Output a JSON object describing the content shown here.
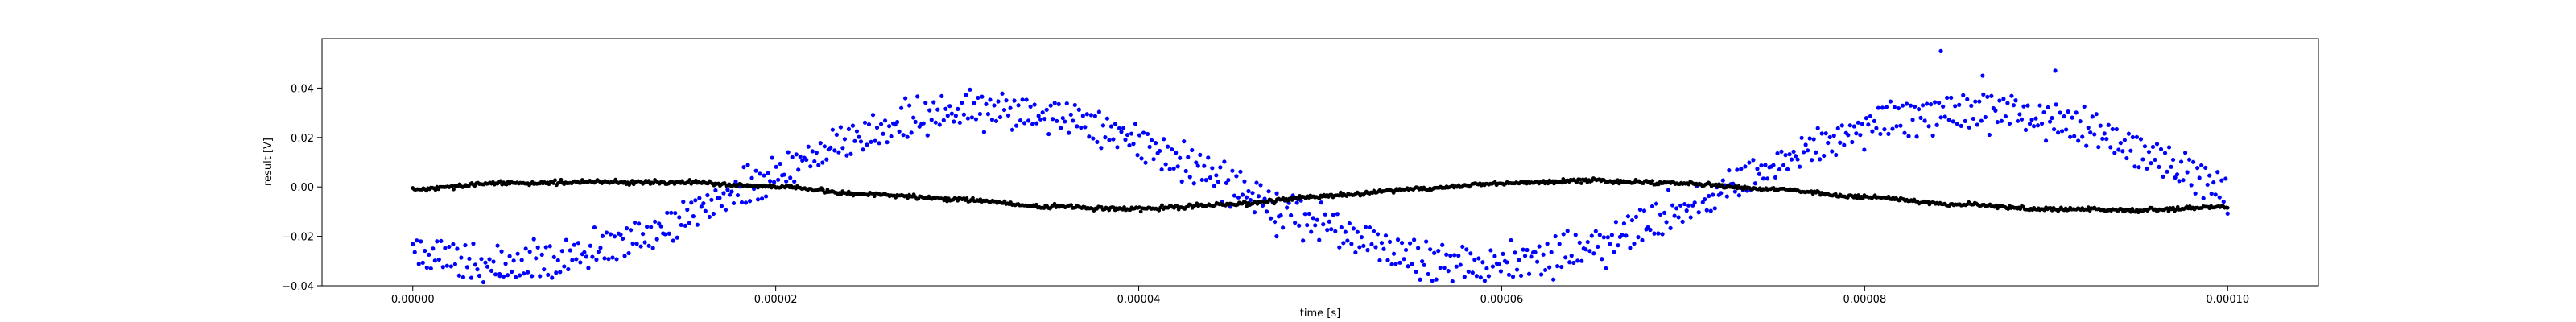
{
  "chart_data": {
    "type": "scatter",
    "title": "",
    "xlabel": "time [s]",
    "ylabel": "result [V]",
    "xlim": [
      -5e-06,
      0.000105
    ],
    "ylim": [
      -0.04,
      0.06
    ],
    "grid": false,
    "x_ticks": [
      {
        "value": 0.0,
        "label": "0.00000"
      },
      {
        "value": 2e-05,
        "label": "0.00002"
      },
      {
        "value": 4e-05,
        "label": "0.00004"
      },
      {
        "value": 6e-05,
        "label": "0.00006"
      },
      {
        "value": 8e-05,
        "label": "0.00008"
      },
      {
        "value": 0.0001,
        "label": "0.00010"
      }
    ],
    "y_ticks": [
      {
        "value": -0.04,
        "label": "−0.04"
      },
      {
        "value": -0.02,
        "label": "−0.02"
      },
      {
        "value": 0.0,
        "label": "0.00"
      },
      {
        "value": 0.02,
        "label": "0.02"
      },
      {
        "value": 0.04,
        "label": "0.04"
      }
    ],
    "series": [
      {
        "color": "#0000ff",
        "marker": "point",
        "generator": {
          "kind": "dual-sine",
          "x_start": 0.0,
          "x_end": 0.0001,
          "count": 900,
          "amplitude": 0.031,
          "period": 5.4e-05,
          "peak_at": 3.2e-05,
          "branch_offsets": [
            0.0035,
            -0.0035
          ],
          "noise": 0.0025,
          "seed": 11
        },
        "outliers": [
          {
            "x": 8.42e-05,
            "y": 0.055
          },
          {
            "x": 8.65e-05,
            "y": 0.045
          },
          {
            "x": 9.05e-05,
            "y": 0.047
          },
          {
            "x": 4.8e-06,
            "y": -0.036
          },
          {
            "x": 4.76e-05,
            "y": -0.02
          }
        ]
      },
      {
        "color": "#000000",
        "marker": "point",
        "points": [
          [
            0.0,
            -0.001
          ],
          [
            5e-06,
            0.0015
          ],
          [
            1e-05,
            0.002
          ],
          [
            1.5e-05,
            0.0018
          ],
          [
            2e-05,
            0.0
          ],
          [
            2.5e-05,
            -0.003
          ],
          [
            3e-05,
            -0.005
          ],
          [
            3.5e-05,
            -0.008
          ],
          [
            4e-05,
            -0.009
          ],
          [
            4.5e-05,
            -0.007
          ],
          [
            5e-05,
            -0.004
          ],
          [
            5.5e-05,
            -0.001
          ],
          [
            6e-05,
            0.0015
          ],
          [
            6.5e-05,
            0.0025
          ],
          [
            7e-05,
            0.0015
          ],
          [
            7.5e-05,
            -0.001
          ],
          [
            8e-05,
            -0.004
          ],
          [
            8.5e-05,
            -0.007
          ],
          [
            9e-05,
            -0.009
          ],
          [
            9.5e-05,
            -0.0095
          ],
          [
            0.0001,
            -0.008
          ]
        ],
        "density": 1200,
        "noise": 0.0004,
        "seed": 29
      }
    ]
  }
}
